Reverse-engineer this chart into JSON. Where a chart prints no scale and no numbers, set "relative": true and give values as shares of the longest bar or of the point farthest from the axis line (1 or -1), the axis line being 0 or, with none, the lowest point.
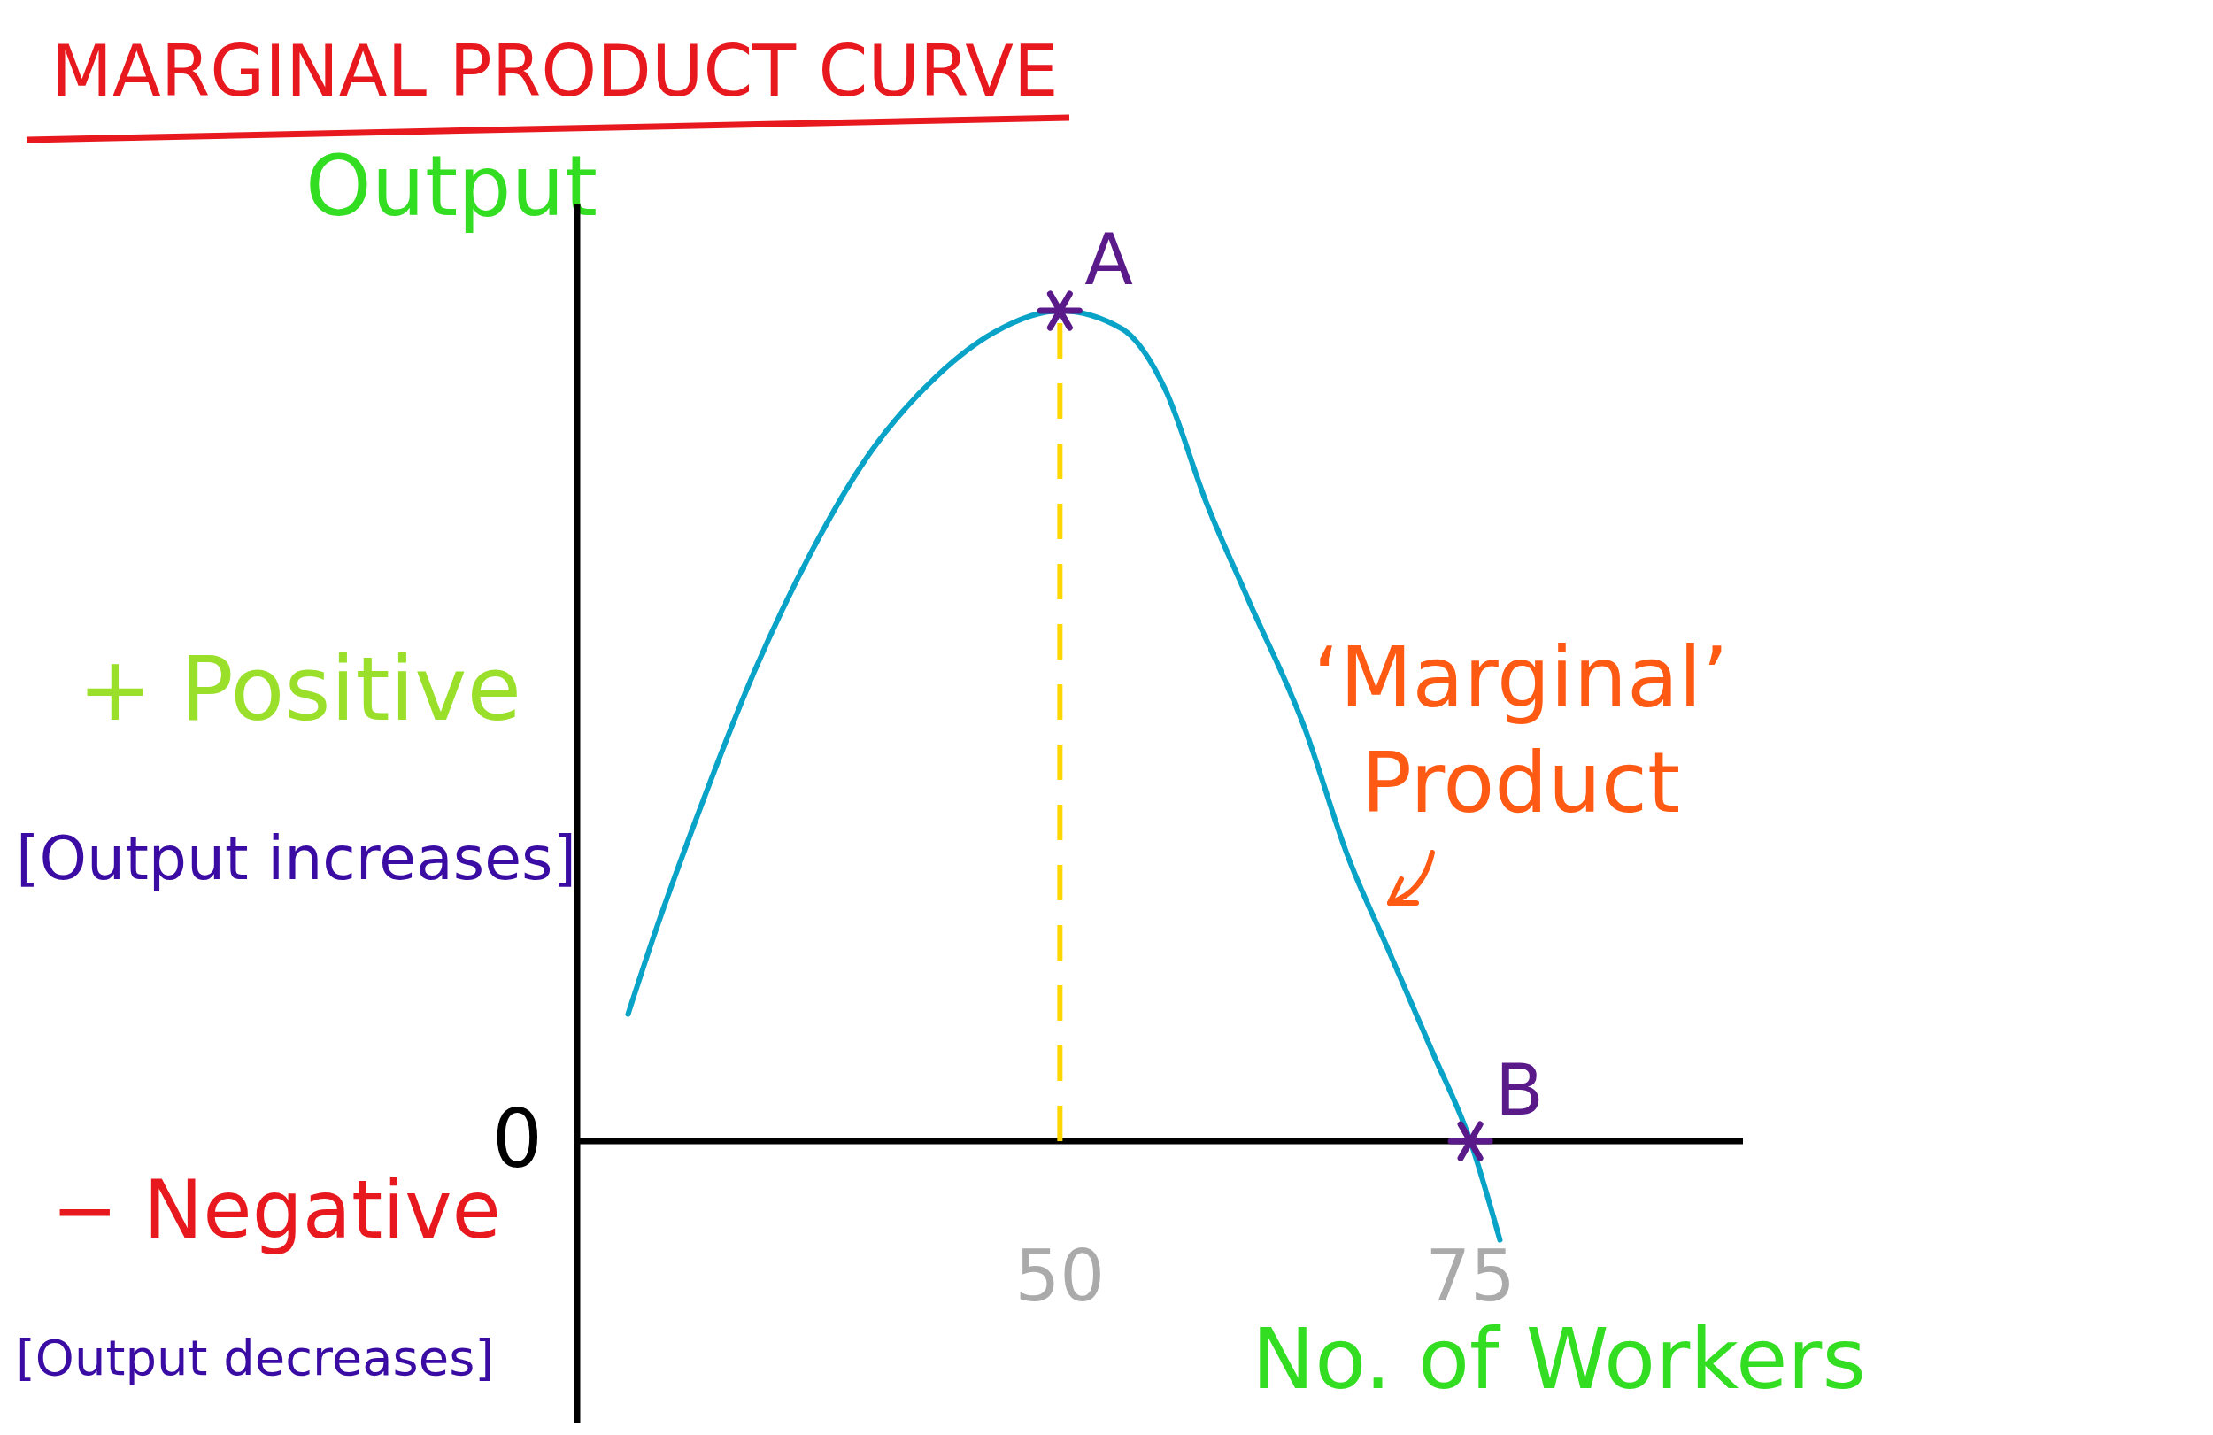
{
  "chart_data": {
    "type": "line",
    "title": "MARGINAL PRODUCT CURVE",
    "ylabel": "Output",
    "xlabel": "No. of Workers",
    "relative": true,
    "x": [
      23.7,
      25.2,
      28.0,
      31.4,
      34.9,
      38.3,
      42.6,
      46.0,
      50,
      53.8,
      56.4,
      58.9,
      61.5,
      64.9,
      67.5,
      70.1,
      72.7,
      75,
      76.8
    ],
    "series": [
      {
        "color": "#0aa3c8",
        "values": [
          0.153,
          0.243,
          0.396,
          0.566,
          0.711,
          0.825,
          0.923,
          0.974,
          1,
          0.978,
          0.906,
          0.77,
          0.651,
          0.498,
          0.345,
          0.226,
          0.107,
          0,
          -0.119
        ]
      }
    ],
    "xlim": [
      20.6,
      91.6
    ],
    "xticks": [
      50,
      75
    ],
    "tick_labels": "x",
    "marker": "none",
    "line_style": "solid",
    "ref_lines": [
      {
        "axis": "x",
        "value": 50,
        "color": "#ffd700",
        "line_style": "dashed"
      }
    ],
    "annotations": [
      {
        "text": "A",
        "x": 50,
        "y": 1
      },
      {
        "text": "B",
        "x": 75,
        "y": 0
      },
      "0",
      "+ Positive",
      "[Output increases]",
      "− Negative",
      "[Output decreases]",
      "‘Marginal’ Product"
    ]
  }
}
